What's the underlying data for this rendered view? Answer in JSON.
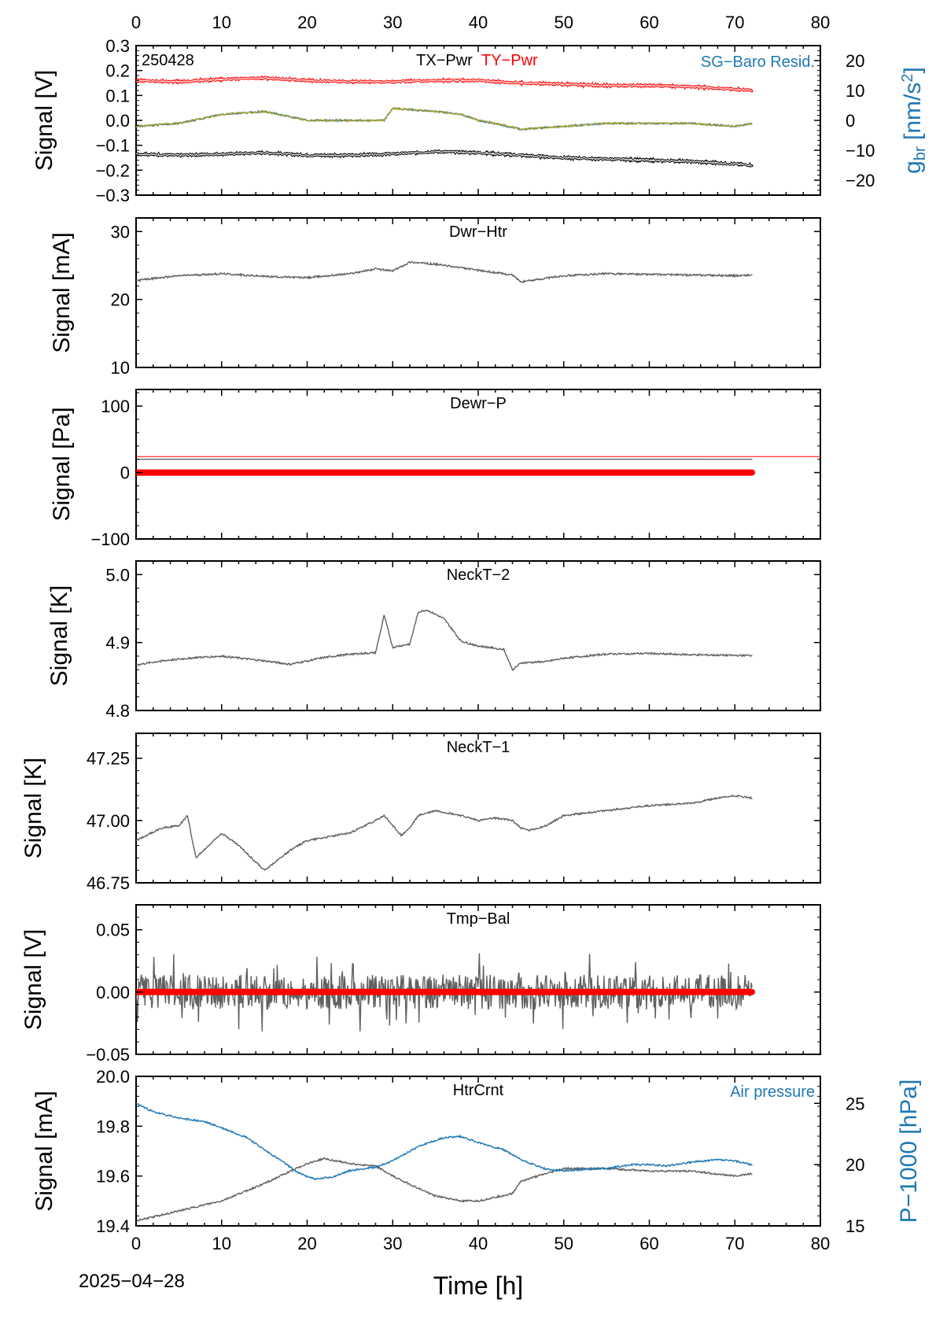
{
  "figure": {
    "date_label": "2025−04−28",
    "xlabel": "Time [h]",
    "x_ticks": [
      "0",
      "10",
      "20",
      "30",
      "40",
      "50",
      "60",
      "70",
      "80"
    ],
    "colors": {
      "black": "#000000",
      "grey": "#606060",
      "red": "#ff0000",
      "blue": "#1f78b4",
      "olive": "#b5a21a"
    }
  },
  "chart_data": [
    {
      "type": "line",
      "id": "p1",
      "title_left": "TX−Pwr",
      "title_right": "TY−Pwr",
      "corner_label": "250428",
      "right_series_label": "SG−Baro Resid.",
      "ylabel": "Signal [V]",
      "ylabel_right_main": "g",
      "ylabel_right_sub": "br",
      "ylabel_right_unit": "[nm/s",
      "ylabel_right_sup": "2",
      "ylabel_right_close": "]",
      "xlim": [
        0,
        80
      ],
      "ylim": [
        -0.3,
        0.3
      ],
      "y_ticks": [
        "0.3",
        "0.2",
        "0.1",
        "0.0",
        "−0.1",
        "−0.2",
        "−0.3"
      ],
      "ylim_right": [
        -25,
        25
      ],
      "y_ticks_right": [
        "20",
        "10",
        "0",
        "−10",
        "−20"
      ],
      "series": [
        {
          "axis": "left",
          "color": "#ff0000",
          "x": [
            0,
            5,
            10,
            15,
            20,
            25,
            30,
            35,
            40,
            45,
            50,
            55,
            60,
            65,
            70,
            72
          ],
          "y": [
            0.16,
            0.155,
            0.165,
            0.17,
            0.16,
            0.155,
            0.155,
            0.16,
            0.16,
            0.15,
            0.145,
            0.14,
            0.14,
            0.135,
            0.125,
            0.12
          ]
        },
        {
          "axis": "left",
          "color": "#000000",
          "x": [
            0,
            5,
            10,
            15,
            20,
            25,
            30,
            35,
            40,
            45,
            50,
            55,
            60,
            65,
            70,
            72
          ],
          "y": [
            -0.135,
            -0.14,
            -0.135,
            -0.13,
            -0.14,
            -0.14,
            -0.135,
            -0.125,
            -0.13,
            -0.14,
            -0.15,
            -0.155,
            -0.16,
            -0.165,
            -0.175,
            -0.18
          ]
        },
        {
          "axis": "right",
          "color": "#1f78b4",
          "x": [
            0,
            5,
            10,
            15,
            20,
            25,
            29,
            30,
            35,
            38,
            40,
            42,
            45,
            50,
            55,
            60,
            65,
            70,
            72
          ],
          "y": [
            -2,
            -1,
            2,
            3,
            0,
            0,
            0,
            4,
            3,
            2,
            0,
            -1,
            -3,
            -2,
            -1,
            -1,
            -1,
            -2,
            -1
          ]
        },
        {
          "axis": "right",
          "color": "#b5a21a",
          "x": [
            0,
            5,
            10,
            15,
            20,
            25,
            29,
            30,
            35,
            38,
            40,
            42,
            45,
            50,
            55,
            60,
            65,
            70,
            72
          ],
          "y": [
            -2,
            -1,
            2,
            3,
            0,
            0,
            0,
            4,
            3,
            2,
            0,
            -1,
            -3,
            -2,
            -1,
            -1,
            -1,
            -2,
            -1
          ]
        }
      ]
    },
    {
      "type": "line",
      "id": "p2",
      "title": "Dwr−Htr",
      "ylabel": "Signal [mA]",
      "xlim": [
        0,
        80
      ],
      "ylim": [
        10,
        32
      ],
      "y_ticks": [
        "30",
        "20",
        "10"
      ],
      "series": [
        {
          "color": "#606060",
          "x": [
            0,
            5,
            10,
            15,
            20,
            25,
            28,
            30,
            32,
            35,
            40,
            44,
            45,
            50,
            55,
            60,
            65,
            70,
            72
          ],
          "y": [
            22.8,
            23.5,
            23.8,
            23.4,
            23.2,
            23.8,
            24.5,
            24.2,
            25.5,
            25.2,
            24.3,
            23.6,
            22.6,
            23.5,
            23.8,
            23.7,
            23.6,
            23.5,
            23.6
          ]
        }
      ]
    },
    {
      "type": "line",
      "id": "p3",
      "title": "Dewr−P",
      "ylabel": "Signal [Pa]",
      "xlim": [
        0,
        80
      ],
      "ylim": [
        -100,
        125
      ],
      "y_ticks": [
        "100",
        "0",
        "−100"
      ],
      "series": [
        {
          "color": "#606060",
          "x": [
            0,
            10,
            20,
            30,
            40,
            50,
            60,
            70,
            72
          ],
          "y": [
            20,
            20,
            20,
            20,
            20,
            20,
            20,
            20,
            20
          ]
        },
        {
          "color": "#ff0000",
          "x": [
            0,
            80
          ],
          "y": [
            24,
            24
          ]
        },
        {
          "color": "#ff0000",
          "x": [
            0,
            72
          ],
          "y": [
            0,
            0
          ]
        }
      ]
    },
    {
      "type": "line",
      "id": "p4",
      "title": "NeckT−2",
      "ylabel": "Signal [K]",
      "xlim": [
        0,
        80
      ],
      "ylim": [
        4.8,
        5.02
      ],
      "y_ticks": [
        "5.0",
        "4.9",
        "4.8"
      ],
      "series": [
        {
          "color": "#606060",
          "x": [
            0,
            3,
            7,
            10,
            15,
            18,
            20,
            22,
            25,
            28,
            29,
            30,
            32,
            33,
            34,
            36,
            38,
            40,
            43,
            44,
            45,
            48,
            50,
            55,
            60,
            65,
            70,
            72
          ],
          "y": [
            4.867,
            4.873,
            4.878,
            4.88,
            4.873,
            4.868,
            4.873,
            4.878,
            4.883,
            4.885,
            4.94,
            4.893,
            4.898,
            4.945,
            4.948,
            4.935,
            4.902,
            4.895,
            4.89,
            4.86,
            4.87,
            4.872,
            4.877,
            4.883,
            4.884,
            4.882,
            4.881,
            4.881
          ]
        }
      ]
    },
    {
      "type": "line",
      "id": "p5",
      "title": "NeckT−1",
      "ylabel": "Signal [K]",
      "xlim": [
        0,
        80
      ],
      "ylim": [
        46.75,
        47.35
      ],
      "y_ticks": [
        "47.25",
        "47.00",
        "46.75"
      ],
      "series": [
        {
          "color": "#606060",
          "x": [
            0,
            3,
            5,
            6,
            7,
            10,
            12,
            15,
            18,
            20,
            25,
            28,
            29,
            30,
            31,
            32,
            33,
            35,
            38,
            40,
            42,
            44,
            45,
            46,
            48,
            50,
            55,
            60,
            65,
            68,
            70,
            72
          ],
          "y": [
            46.92,
            46.97,
            46.98,
            47.02,
            46.85,
            46.95,
            46.9,
            46.8,
            46.88,
            46.92,
            46.95,
            47.0,
            47.02,
            46.98,
            46.94,
            46.97,
            47.02,
            47.04,
            47.02,
            47.0,
            47.01,
            47.0,
            46.97,
            46.96,
            46.98,
            47.02,
            47.04,
            47.06,
            47.07,
            47.09,
            47.1,
            47.09
          ]
        }
      ]
    },
    {
      "type": "line",
      "id": "p6",
      "title": "Tmp−Bal",
      "ylabel": "Signal [V]",
      "xlim": [
        0,
        80
      ],
      "ylim": [
        -0.05,
        0.07
      ],
      "y_ticks": [
        "0.05",
        "0.00",
        "−0.05"
      ],
      "series": [
        {
          "color": "#606060",
          "x": [
            0,
            72
          ],
          "y": [
            0,
            0
          ],
          "noise_band": 0.02
        },
        {
          "color": "#ff0000",
          "x": [
            0,
            72
          ],
          "y": [
            0,
            0
          ]
        }
      ]
    },
    {
      "type": "line",
      "id": "p7",
      "title": "HtrCrnt",
      "right_series_label": "Air pressure",
      "ylabel": "Signal [mA]",
      "ylabel_right": "P−1000 [hPa]",
      "xlim": [
        0,
        80
      ],
      "ylim": [
        19.4,
        20.0
      ],
      "y_ticks": [
        "20.0",
        "19.8",
        "19.6",
        "19.4"
      ],
      "ylim_right": [
        15,
        27.2
      ],
      "y_ticks_right": [
        "25",
        "20",
        "15"
      ],
      "series": [
        {
          "axis": "left",
          "color": "#606060",
          "x": [
            0,
            5,
            10,
            15,
            20,
            22,
            25,
            28,
            30,
            33,
            35,
            38,
            40,
            44,
            45,
            48,
            50,
            55,
            60,
            65,
            70,
            72
          ],
          "y": [
            19.42,
            19.46,
            19.5,
            19.57,
            19.65,
            19.67,
            19.65,
            19.64,
            19.6,
            19.55,
            19.52,
            19.5,
            19.5,
            19.53,
            19.58,
            19.61,
            19.63,
            19.63,
            19.62,
            19.62,
            19.6,
            19.61
          ]
        },
        {
          "axis": "right",
          "color": "#1f78b4",
          "x": [
            0,
            2,
            5,
            8,
            10,
            13,
            15,
            17,
            19,
            21,
            23,
            25,
            28,
            30,
            33,
            36,
            38,
            40,
            43,
            45,
            48,
            50,
            55,
            58,
            60,
            62,
            65,
            68,
            70,
            72
          ],
          "y": [
            25.0,
            24.3,
            23.8,
            23.5,
            23.0,
            22.2,
            21.2,
            20.3,
            19.3,
            18.8,
            19.0,
            19.5,
            19.8,
            20.3,
            21.5,
            22.2,
            22.3,
            21.8,
            21.2,
            20.4,
            19.6,
            19.5,
            19.7,
            20.0,
            20.0,
            19.9,
            20.2,
            20.4,
            20.3,
            20.0
          ]
        }
      ]
    }
  ]
}
